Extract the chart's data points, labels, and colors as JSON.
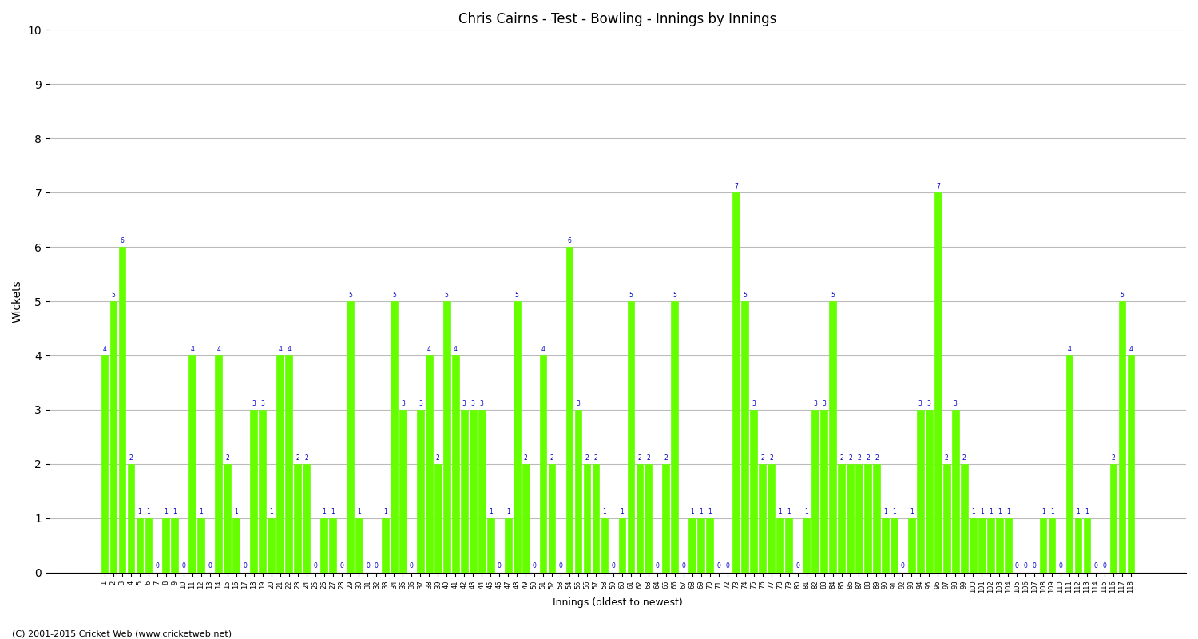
{
  "title": "Chris Cairns - Test - Bowling - Innings by Innings",
  "ylabel": "Wickets",
  "xlabel": "Innings (oldest to newest)",
  "ylim": [
    0,
    10
  ],
  "yticks": [
    0,
    1,
    2,
    3,
    4,
    5,
    6,
    7,
    8,
    9,
    10
  ],
  "bar_color": "#66ff00",
  "label_color": "#0000cc",
  "background_color": "#ffffff",
  "grid_color": "#bbbbbb",
  "footer": "(C) 2001-2015 Cricket Web (www.cricketweb.net)",
  "wickets": [
    4,
    5,
    6,
    2,
    1,
    1,
    0,
    1,
    1,
    0,
    4,
    1,
    0,
    4,
    2,
    1,
    0,
    3,
    3,
    1,
    4,
    4,
    2,
    2,
    0,
    1,
    1,
    0,
    5,
    1,
    0,
    0,
    1,
    5,
    3,
    0,
    3,
    4,
    2,
    5,
    4,
    3,
    3,
    3,
    1,
    0,
    1,
    5,
    2,
    0,
    4,
    2,
    0,
    6,
    3,
    2,
    2,
    1,
    0,
    1,
    5,
    2,
    2,
    0,
    2,
    5,
    0,
    1,
    1,
    1,
    0,
    0,
    7,
    5,
    3,
    2,
    2,
    1,
    1,
    0,
    1,
    3,
    3,
    5,
    2,
    2,
    2,
    2,
    2,
    1,
    1,
    0,
    1,
    3,
    3,
    7,
    2,
    3,
    2,
    1,
    1,
    1,
    1,
    1,
    0,
    0,
    0,
    1,
    1,
    0,
    4,
    1,
    1,
    0,
    0,
    2,
    5,
    4
  ]
}
